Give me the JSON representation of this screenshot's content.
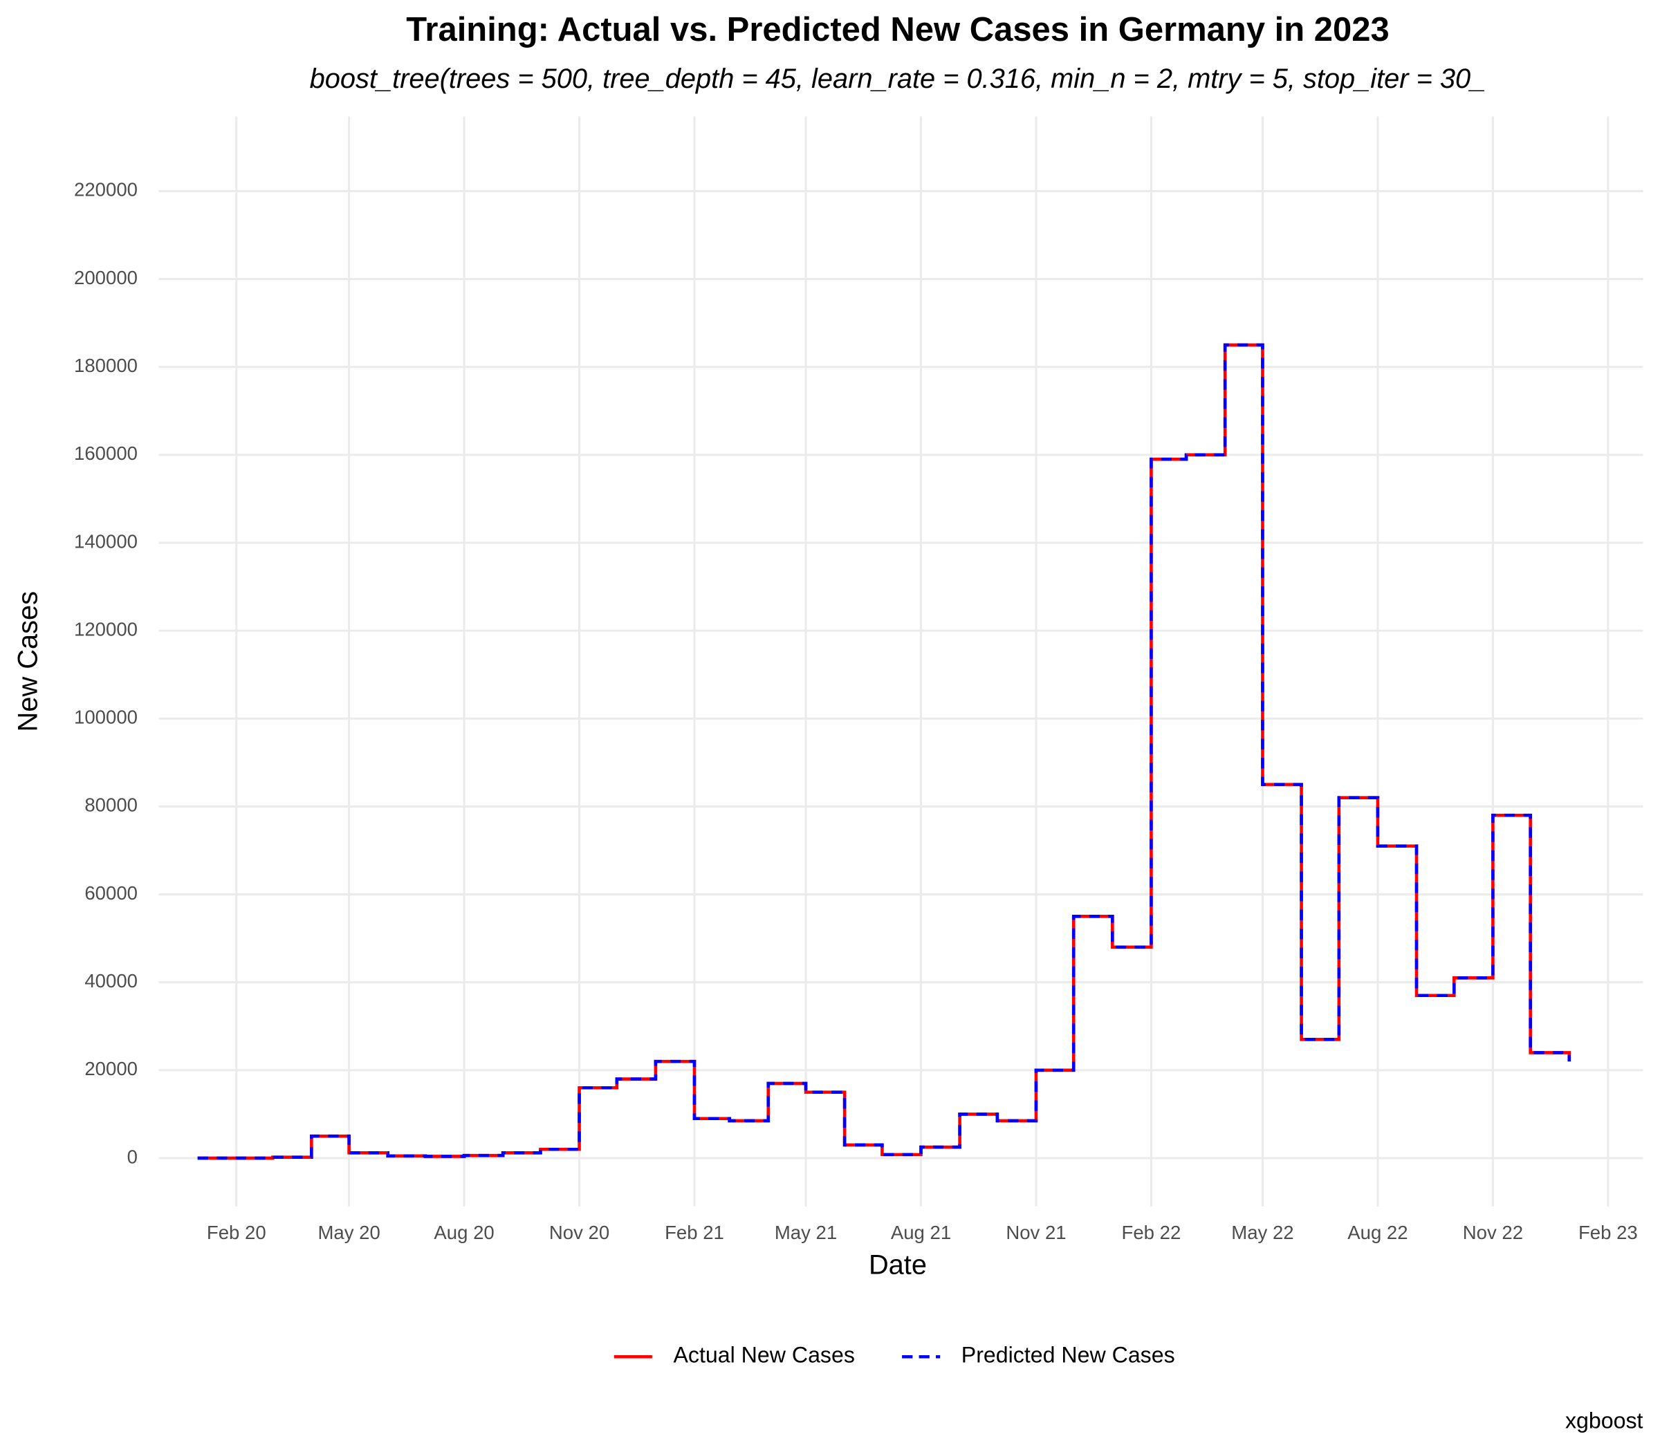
{
  "chart_data": {
    "type": "line",
    "title": "Training: Actual vs. Predicted New Cases in Germany in 2023",
    "subtitle": "boost_tree(trees = 500, tree_depth = 45, learn_rate = 0.316, min_n = 2, mtry = 5, stop_iter = 30_",
    "x_label": "Date",
    "y_label": "New Cases",
    "caption": "xgboost",
    "step": true,
    "grid": true,
    "legend_position": "bottom",
    "x": [
      "2020-01",
      "2020-02",
      "2020-03",
      "2020-04",
      "2020-05",
      "2020-06",
      "2020-07",
      "2020-08",
      "2020-09",
      "2020-10",
      "2020-11",
      "2020-12",
      "2021-01",
      "2021-02",
      "2021-03",
      "2021-04",
      "2021-05",
      "2021-06",
      "2021-07",
      "2021-08",
      "2021-09",
      "2021-10",
      "2021-11",
      "2021-12",
      "2022-01",
      "2022-02",
      "2022-03",
      "2022-04",
      "2022-05",
      "2022-06",
      "2022-07",
      "2022-08",
      "2022-09",
      "2022-10",
      "2022-11",
      "2022-12",
      "2023-01"
    ],
    "series": [
      {
        "name": "Actual New Cases",
        "color": "#ff0000",
        "dash": false,
        "values": [
          0,
          0,
          200,
          5000,
          1200,
          500,
          400,
          600,
          1200,
          2000,
          16000,
          18000,
          22000,
          9000,
          8500,
          17000,
          15000,
          3000,
          800,
          2500,
          10000,
          8500,
          20000,
          55000,
          48000,
          159000,
          160000,
          185000,
          85000,
          27000,
          82000,
          71000,
          37000,
          41000,
          78000,
          24000,
          22000
        ]
      },
      {
        "name": "Predicted New Cases",
        "color": "#0000ff",
        "dash": true,
        "values": [
          0,
          0,
          200,
          5000,
          1200,
          500,
          400,
          600,
          1200,
          2000,
          16000,
          18000,
          22000,
          9000,
          8500,
          17000,
          15000,
          3000,
          800,
          2500,
          10000,
          8500,
          20000,
          55000,
          48000,
          159000,
          160000,
          185000,
          85000,
          27000,
          82000,
          71000,
          37000,
          41000,
          78000,
          24000,
          22000
        ]
      }
    ],
    "xlim": [
      "2019-12",
      "2023-03"
    ],
    "xticks": [
      {
        "value": "2020-02",
        "label": "Feb 20"
      },
      {
        "value": "2020-05",
        "label": "May 20"
      },
      {
        "value": "2020-08",
        "label": "Aug 20"
      },
      {
        "value": "2020-11",
        "label": "Nov 20"
      },
      {
        "value": "2021-02",
        "label": "Feb 21"
      },
      {
        "value": "2021-05",
        "label": "May 21"
      },
      {
        "value": "2021-08",
        "label": "Aug 21"
      },
      {
        "value": "2021-11",
        "label": "Nov 21"
      },
      {
        "value": "2022-02",
        "label": "Feb 22"
      },
      {
        "value": "2022-05",
        "label": "May 22"
      },
      {
        "value": "2022-08",
        "label": "Aug 22"
      },
      {
        "value": "2022-11",
        "label": "Nov 22"
      },
      {
        "value": "2023-02",
        "label": "Feb 23"
      }
    ],
    "ylim": [
      -11000,
      237000
    ],
    "yticks": [
      0,
      20000,
      40000,
      60000,
      80000,
      100000,
      120000,
      140000,
      160000,
      180000,
      200000,
      220000
    ]
  }
}
